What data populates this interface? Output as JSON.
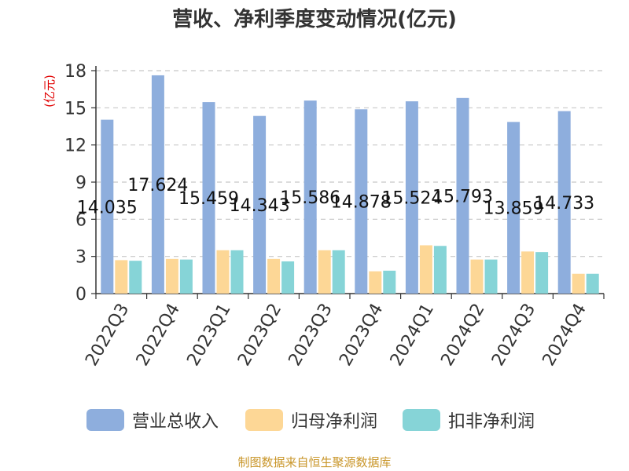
{
  "title": "营收、净利季度变动情况(亿元)",
  "footer": "制图数据来自恒生聚源数据库",
  "chart_data": {
    "type": "bar",
    "title": "营收、净利季度变动情况(亿元)",
    "ylabel": "(亿元)",
    "xlabel": "",
    "ylim": [
      0,
      18
    ],
    "yticks": [
      0,
      3,
      6,
      9,
      12,
      15,
      18
    ],
    "ytick_labels": [
      "0",
      "3",
      "6",
      "9",
      "12",
      "15",
      "18"
    ],
    "grid": true,
    "legend_position": "bottom",
    "categories": [
      "2022Q3",
      "2022Q4",
      "2023Q1",
      "2023Q2",
      "2023Q3",
      "2023Q4",
      "2024Q1",
      "2024Q2",
      "2024Q3",
      "2024Q4"
    ],
    "series": [
      {
        "name": "营业总收入",
        "color": "#8eaedd",
        "values": [
          14.035,
          17.624,
          15.459,
          14.343,
          15.586,
          14.878,
          15.524,
          15.793,
          13.859,
          14.733
        ],
        "labels": [
          "14.035",
          "17.624",
          "15.459",
          "14.343",
          "15.586",
          "14.878",
          "15.524",
          "15.793",
          "13.859",
          "14.733"
        ]
      },
      {
        "name": "归母净利润",
        "color": "#fdd796",
        "values": [
          2.7,
          2.8,
          3.5,
          2.8,
          3.5,
          1.8,
          3.9,
          2.75,
          3.4,
          1.6
        ]
      },
      {
        "name": "扣非净利润",
        "color": "#86d4d7",
        "values": [
          2.65,
          2.75,
          3.5,
          2.6,
          3.5,
          1.85,
          3.85,
          2.75,
          3.35,
          1.6
        ]
      }
    ]
  }
}
